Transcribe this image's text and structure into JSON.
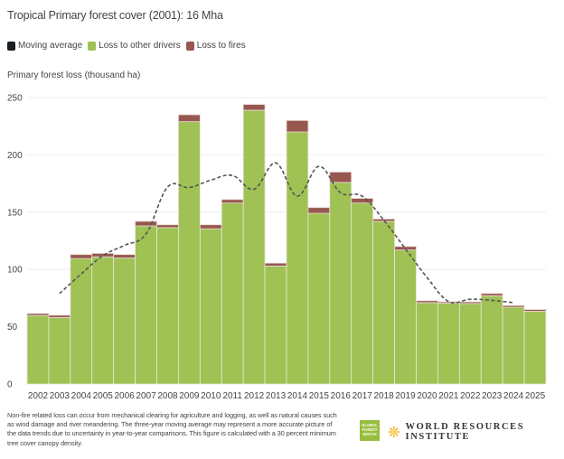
{
  "header": {
    "title": "Tropical Primary forest cover (2001): 16 Mha"
  },
  "legend": [
    {
      "label": "Moving average",
      "color": "#1a1f24"
    },
    {
      "label": "Loss to other drivers",
      "color": "#a0c154"
    },
    {
      "label": "Loss to fires",
      "color": "#97574f"
    }
  ],
  "chart_data": {
    "type": "bar",
    "stacked": true,
    "title": "Tropical Primary forest cover (2001): 16 Mha",
    "ylabel": "Primary forest loss (thousand ha)",
    "xlabel": "",
    "ylim": [
      0,
      250
    ],
    "yticks": [
      "0",
      "50",
      "100",
      "150",
      "200",
      "250"
    ],
    "grid": true,
    "legend_position": "top-left",
    "categories": [
      "2002",
      "2003",
      "2004",
      "2005",
      "2006",
      "2007",
      "2008",
      "2009",
      "2010",
      "2011",
      "2012",
      "2013",
      "2014",
      "2015",
      "2016",
      "2017",
      "2018",
      "2019",
      "2020",
      "2021",
      "2022",
      "2023",
      "2024",
      "2025"
    ],
    "series": [
      {
        "name": "Loss to other drivers",
        "color": "#a0c154",
        "values": [
          59.8,
          58,
          109.5,
          111,
          110,
          138,
          136.5,
          229,
          135.5,
          158,
          239,
          103,
          220,
          149,
          176,
          158,
          142,
          117,
          71,
          70.6,
          70.3,
          77,
          67,
          63.5
        ]
      },
      {
        "name": "Loss to fires",
        "color": "#97574f",
        "values": [
          1.7,
          2,
          3.5,
          3,
          3,
          4,
          2.5,
          6,
          3.5,
          3,
          5,
          2.5,
          10,
          5,
          9,
          4,
          2,
          3,
          1.7,
          1.1,
          1.4,
          2,
          1.5,
          1.5
        ]
      },
      {
        "name": "Moving average",
        "type": "line",
        "style": "dashed",
        "color": "#555555",
        "x": [
          "2003",
          "2004",
          "2005",
          "2006",
          "2007",
          "2008",
          "2009",
          "2010",
          "2011",
          "2012",
          "2013",
          "2014",
          "2015",
          "2016",
          "2017",
          "2018",
          "2019",
          "2020",
          "2021",
          "2022",
          "2023",
          "2024"
        ],
        "values": [
          79,
          96,
          112,
          121,
          131,
          172,
          171.5,
          178,
          182,
          170,
          193,
          164,
          190,
          167,
          164,
          143,
          118,
          93,
          72,
          74,
          73,
          71
        ]
      }
    ]
  },
  "footer": {
    "note": "Non-fire related loss can occur from mechanical clearing for agriculture and logging, as well as natural causes such as wind damage and river meandering. The three-year moving average may represent a more accurate picture of the data trends due to uncertainty in year-to-year comparisons. This figure is calculated with a 30 percent minimum tree cover canopy density.",
    "gfw_logo_text": [
      "GLOBAL",
      "FOREST",
      "WATCH"
    ],
    "wri_logo_text": "WORLD RESOURCES INSTITUTE"
  }
}
